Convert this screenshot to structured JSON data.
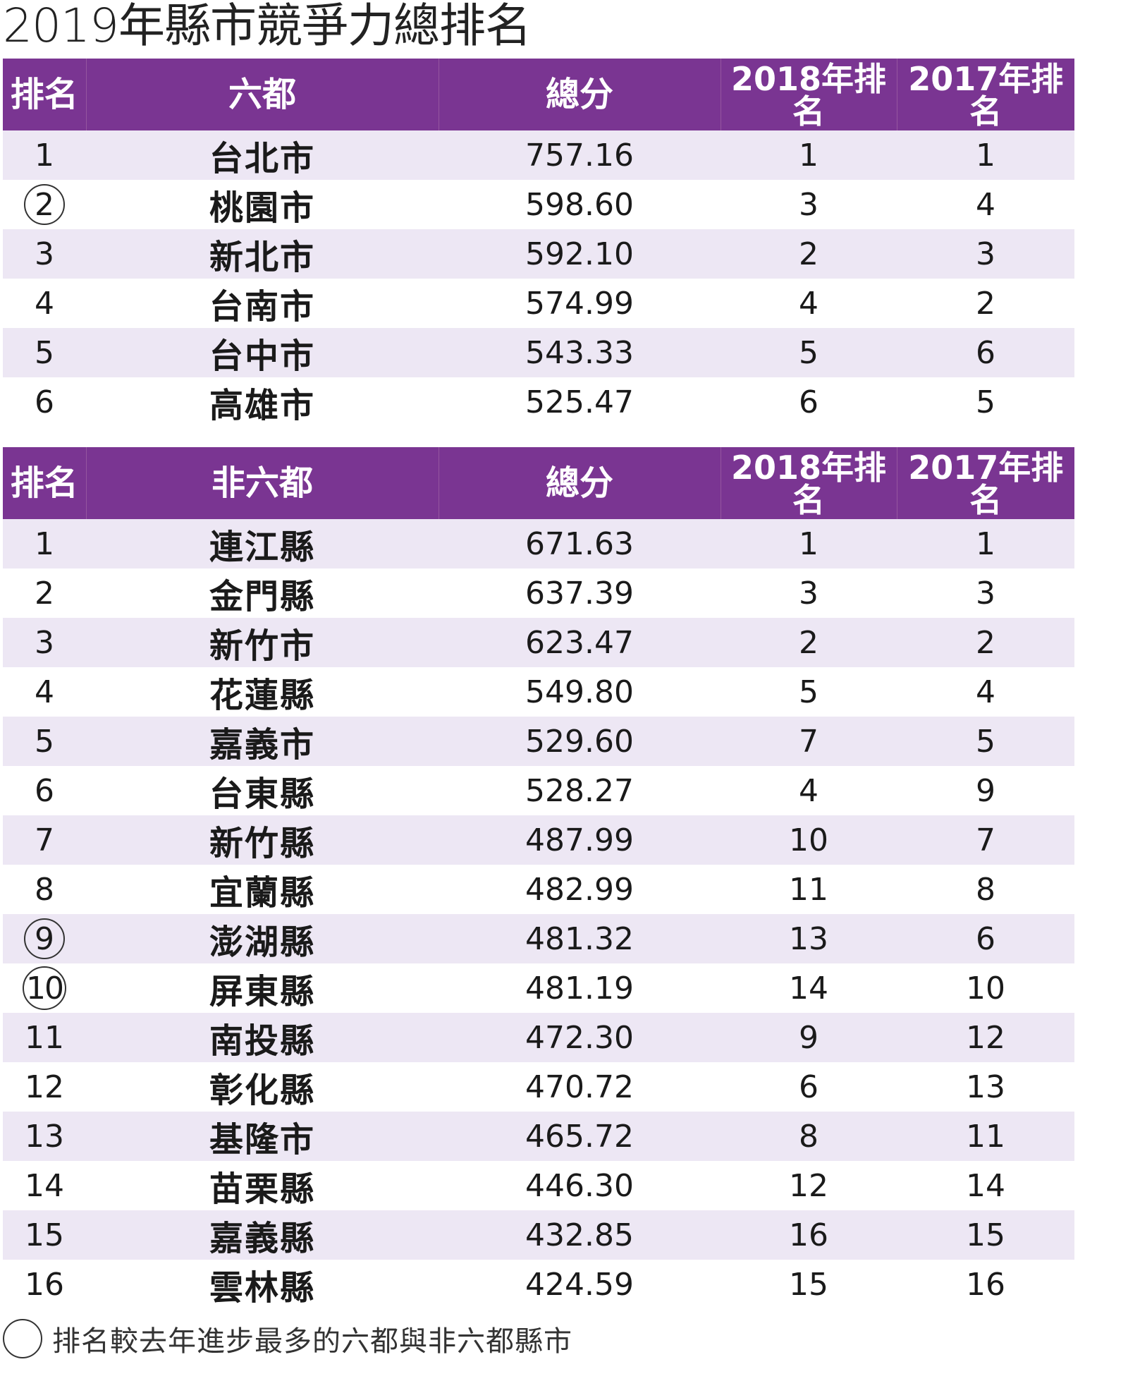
{
  "title": "2019年縣市競爭力總排名",
  "tables": [
    {
      "headers": {
        "rank": "排名",
        "name": "六都",
        "score": "總分",
        "y2018": [
          "2018年排",
          "名"
        ],
        "y2017": [
          "2017年排",
          "名"
        ]
      },
      "rows": [
        {
          "rank": "1",
          "name": "台北市",
          "score": "757.16",
          "r2018": "1",
          "r2017": "1",
          "highlight": false
        },
        {
          "rank": "2",
          "name": "桃園市",
          "score": "598.60",
          "r2018": "3",
          "r2017": "4",
          "highlight": true
        },
        {
          "rank": "3",
          "name": "新北市",
          "score": "592.10",
          "r2018": "2",
          "r2017": "3",
          "highlight": false
        },
        {
          "rank": "4",
          "name": "台南市",
          "score": "574.99",
          "r2018": "4",
          "r2017": "2",
          "highlight": false
        },
        {
          "rank": "5",
          "name": "台中市",
          "score": "543.33",
          "r2018": "5",
          "r2017": "6",
          "highlight": false
        },
        {
          "rank": "6",
          "name": "高雄市",
          "score": "525.47",
          "r2018": "6",
          "r2017": "5",
          "highlight": false
        }
      ]
    },
    {
      "headers": {
        "rank": "排名",
        "name": "非六都",
        "score": "總分",
        "y2018": [
          "2018年排",
          "名"
        ],
        "y2017": [
          "2017年排",
          "名"
        ]
      },
      "rows": [
        {
          "rank": "1",
          "name": "連江縣",
          "score": "671.63",
          "r2018": "1",
          "r2017": "1",
          "highlight": false
        },
        {
          "rank": "2",
          "name": "金門縣",
          "score": "637.39",
          "r2018": "3",
          "r2017": "3",
          "highlight": false
        },
        {
          "rank": "3",
          "name": "新竹市",
          "score": "623.47",
          "r2018": "2",
          "r2017": "2",
          "highlight": false
        },
        {
          "rank": "4",
          "name": "花蓮縣",
          "score": "549.80",
          "r2018": "5",
          "r2017": "4",
          "highlight": false
        },
        {
          "rank": "5",
          "name": "嘉義市",
          "score": "529.60",
          "r2018": "7",
          "r2017": "5",
          "highlight": false
        },
        {
          "rank": "6",
          "name": "台東縣",
          "score": "528.27",
          "r2018": "4",
          "r2017": "9",
          "highlight": false
        },
        {
          "rank": "7",
          "name": "新竹縣",
          "score": "487.99",
          "r2018": "10",
          "r2017": "7",
          "highlight": false
        },
        {
          "rank": "8",
          "name": "宜蘭縣",
          "score": "482.99",
          "r2018": "11",
          "r2017": "8",
          "highlight": false
        },
        {
          "rank": "9",
          "name": "澎湖縣",
          "score": "481.32",
          "r2018": "13",
          "r2017": "6",
          "highlight": true
        },
        {
          "rank": "10",
          "name": "屏東縣",
          "score": "481.19",
          "r2018": "14",
          "r2017": "10",
          "highlight": true
        },
        {
          "rank": "11",
          "name": "南投縣",
          "score": "472.30",
          "r2018": "9",
          "r2017": "12",
          "highlight": false
        },
        {
          "rank": "12",
          "name": "彰化縣",
          "score": "470.72",
          "r2018": "6",
          "r2017": "13",
          "highlight": false
        },
        {
          "rank": "13",
          "name": "基隆市",
          "score": "465.72",
          "r2018": "8",
          "r2017": "11",
          "highlight": false
        },
        {
          "rank": "14",
          "name": "苗栗縣",
          "score": "446.30",
          "r2018": "12",
          "r2017": "14",
          "highlight": false
        },
        {
          "rank": "15",
          "name": "嘉義縣",
          "score": "432.85",
          "r2018": "16",
          "r2017": "15",
          "highlight": false
        },
        {
          "rank": "16",
          "name": "雲林縣",
          "score": "424.59",
          "r2018": "15",
          "r2017": "16",
          "highlight": false
        }
      ]
    }
  ],
  "legend": {
    "text": "排名較去年進步最多的六都與非六都縣市"
  },
  "colors": {
    "header_bg": "#7a3592",
    "stripe_bg": "#ede7f4"
  }
}
